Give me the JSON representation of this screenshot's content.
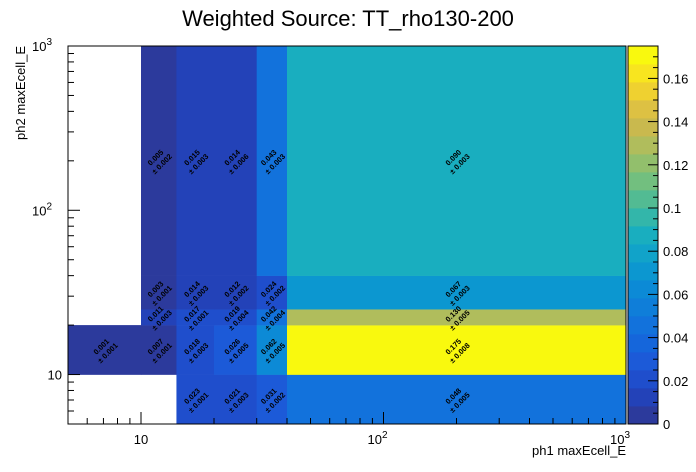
{
  "chart_data": {
    "type": "heatmap",
    "title": "Weighted Source: TT_rho130-200",
    "xlabel": "ph1 maxEcell_E",
    "ylabel": "ph2 maxEcell_E",
    "xscale": "log",
    "yscale": "log",
    "xlim": [
      5,
      1000
    ],
    "ylim": [
      5,
      1000
    ],
    "zlim": [
      0,
      0.175
    ],
    "x_tick_labels": [
      "10",
      "10^2",
      "10^3"
    ],
    "y_tick_labels": [
      "10",
      "10^2",
      "10^3"
    ],
    "colorbar_ticks": [
      "0",
      "0.02",
      "0.04",
      "0.06",
      "0.08",
      "0.1",
      "0.12",
      "0.14",
      "0.16"
    ],
    "colorbar_ticks_values": [
      0,
      0.02,
      0.04,
      0.06,
      0.08,
      0.1,
      0.12,
      0.14,
      0.16
    ],
    "x_bin_edges": [
      5,
      10,
      14,
      20,
      30,
      40,
      1000
    ],
    "y_bin_edges": [
      5,
      10,
      20,
      25,
      40,
      1000
    ],
    "cells": [
      {
        "xi": 0,
        "yi": 1,
        "value": 0.001,
        "label": "0.001",
        "error": "± 0.001"
      },
      {
        "xi": 1,
        "yi": 1,
        "value": 0.007,
        "label": "0.007",
        "error": "± 0.001"
      },
      {
        "xi": 1,
        "yi": 2,
        "value": 0.011,
        "label": "0.011",
        "error": "± 0.003"
      },
      {
        "xi": 1,
        "yi": 3,
        "value": 0.003,
        "label": "0.003",
        "error": "± 0.001"
      },
      {
        "xi": 1,
        "yi": 4,
        "value": 0.005,
        "label": "0.005",
        "error": "± 0.002"
      },
      {
        "xi": 2,
        "yi": 0,
        "value": 0.023,
        "label": "0.023",
        "error": "± 0.001"
      },
      {
        "xi": 2,
        "yi": 1,
        "value": 0.018,
        "label": "0.018",
        "error": "± 0.003"
      },
      {
        "xi": 2,
        "yi": 2,
        "value": 0.017,
        "label": "0.017",
        "error": "± 0.001"
      },
      {
        "xi": 2,
        "yi": 3,
        "value": 0.014,
        "label": "0.014",
        "error": "± 0.003"
      },
      {
        "xi": 2,
        "yi": 4,
        "value": 0.015,
        "label": "0.015",
        "error": "± 0.003"
      },
      {
        "xi": 3,
        "yi": 0,
        "value": 0.021,
        "label": "0.021",
        "error": "± 0.003"
      },
      {
        "xi": 3,
        "yi": 1,
        "value": 0.026,
        "label": "0.026",
        "error": "± 0.005"
      },
      {
        "xi": 3,
        "yi": 2,
        "value": 0.019,
        "label": "0.019",
        "error": "± 0.004"
      },
      {
        "xi": 3,
        "yi": 3,
        "value": 0.012,
        "label": "0.012",
        "error": "± 0.002"
      },
      {
        "xi": 3,
        "yi": 4,
        "value": 0.014,
        "label": "0.014",
        "error": "± 0.006"
      },
      {
        "xi": 4,
        "yi": 0,
        "value": 0.031,
        "label": "0.031",
        "error": "± 0.002"
      },
      {
        "xi": 4,
        "yi": 1,
        "value": 0.062,
        "label": "0.062",
        "error": "± 0.005"
      },
      {
        "xi": 4,
        "yi": 2,
        "value": 0.042,
        "label": "0.042",
        "error": "± 0.004"
      },
      {
        "xi": 4,
        "yi": 3,
        "value": 0.024,
        "label": "0.024",
        "error": "± 0.002"
      },
      {
        "xi": 4,
        "yi": 4,
        "value": 0.043,
        "label": "0.043",
        "error": "± 0.003"
      },
      {
        "xi": 5,
        "yi": 0,
        "value": 0.048,
        "label": "0.048",
        "error": "± 0.005"
      },
      {
        "xi": 5,
        "yi": 1,
        "value": 0.175,
        "label": "0.175",
        "error": "± 0.008"
      },
      {
        "xi": 5,
        "yi": 2,
        "value": 0.13,
        "label": "0.130",
        "error": "± 0.005"
      },
      {
        "xi": 5,
        "yi": 3,
        "value": 0.067,
        "label": "0.067",
        "error": "± 0.003"
      },
      {
        "xi": 5,
        "yi": 4,
        "value": 0.09,
        "label": "0.090",
        "error": "± 0.003"
      }
    ],
    "legend": "colorbar-right",
    "grid": false
  }
}
